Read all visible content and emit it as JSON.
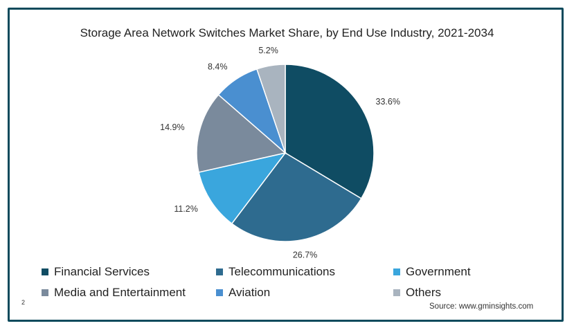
{
  "colors": {
    "frame_border": "#0d4a5c"
  },
  "chart_data": {
    "type": "pie",
    "title": "Storage Area Network Switches Market Share, by End Use Industry, 2021-2034",
    "legend_position": "bottom",
    "slices": [
      {
        "name": "Financial Services",
        "value": 33.6,
        "label": "33.6%",
        "color": "#0f4c63"
      },
      {
        "name": "Telecommunications",
        "value": 26.7,
        "label": "26.7%",
        "color": "#2e6b8f"
      },
      {
        "name": "Government",
        "value": 11.2,
        "label": "11.2%",
        "color": "#3aa6dd"
      },
      {
        "name": "Media and Entertainment",
        "value": 14.9,
        "label": "14.9%",
        "color": "#7a8a9c"
      },
      {
        "name": "Aviation",
        "value": 8.4,
        "label": "8.4%",
        "color": "#4a8fd0"
      },
      {
        "name": "Others",
        "value": 5.2,
        "label": "5.2%",
        "color": "#a9b4bf"
      }
    ]
  },
  "footer": {
    "source": "Source: www.gminsights.com",
    "page_number": "2"
  }
}
